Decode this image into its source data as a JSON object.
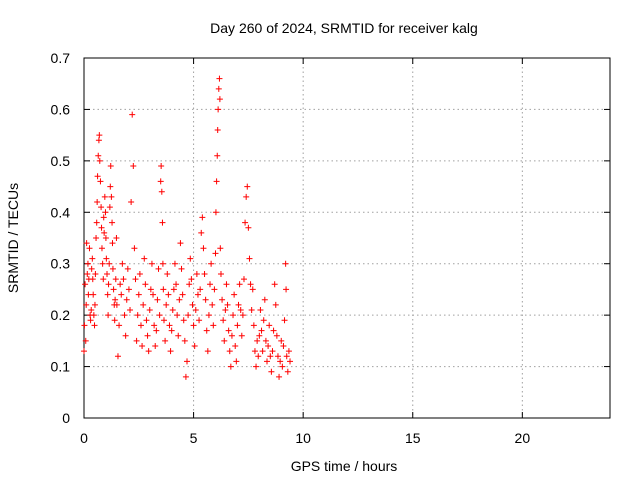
{
  "chart_data": {
    "type": "scatter",
    "title": "Day 260 of 2024, SRMTID for receiver kalg",
    "xlabel": "GPS time / hours",
    "ylabel": "SRMTID / TECUs",
    "xlim": [
      0,
      24
    ],
    "ylim": [
      0,
      0.7
    ],
    "xticks": [
      0,
      5,
      10,
      15,
      20
    ],
    "yticks": [
      0,
      0.1,
      0.2,
      0.3,
      0.4,
      0.5,
      0.6,
      0.7
    ],
    "marker": "+",
    "color": "#ff0000",
    "grid": true,
    "series": [
      {
        "name": "SRMTID",
        "points": [
          [
            0.0,
            0.13
          ],
          [
            0.02,
            0.18
          ],
          [
            0.05,
            0.26
          ],
          [
            0.08,
            0.15
          ],
          [
            0.1,
            0.22
          ],
          [
            0.12,
            0.34
          ],
          [
            0.15,
            0.28
          ],
          [
            0.18,
            0.3
          ],
          [
            0.2,
            0.24
          ],
          [
            0.22,
            0.27
          ],
          [
            0.25,
            0.33
          ],
          [
            0.28,
            0.2
          ],
          [
            0.3,
            0.19
          ],
          [
            0.33,
            0.21
          ],
          [
            0.35,
            0.29
          ],
          [
            0.38,
            0.31
          ],
          [
            0.4,
            0.27
          ],
          [
            0.42,
            0.24
          ],
          [
            0.45,
            0.2
          ],
          [
            0.48,
            0.18
          ],
          [
            0.5,
            0.22
          ],
          [
            0.52,
            0.28
          ],
          [
            0.55,
            0.35
          ],
          [
            0.58,
            0.38
          ],
          [
            0.6,
            0.42
          ],
          [
            0.62,
            0.47
          ],
          [
            0.65,
            0.51
          ],
          [
            0.68,
            0.54
          ],
          [
            0.7,
            0.55
          ],
          [
            0.72,
            0.5
          ],
          [
            0.75,
            0.46
          ],
          [
            0.78,
            0.41
          ],
          [
            0.8,
            0.37
          ],
          [
            0.82,
            0.33
          ],
          [
            0.85,
            0.3
          ],
          [
            0.88,
            0.27
          ],
          [
            0.9,
            0.39
          ],
          [
            0.92,
            0.36
          ],
          [
            0.95,
            0.43
          ],
          [
            0.98,
            0.4
          ],
          [
            1.0,
            0.35
          ],
          [
            1.02,
            0.31
          ],
          [
            1.05,
            0.28
          ],
          [
            1.08,
            0.24
          ],
          [
            1.1,
            0.2
          ],
          [
            1.12,
            0.26
          ],
          [
            1.15,
            0.3
          ],
          [
            1.18,
            0.41
          ],
          [
            1.2,
            0.45
          ],
          [
            1.22,
            0.49
          ],
          [
            1.25,
            0.43
          ],
          [
            1.28,
            0.38
          ],
          [
            1.3,
            0.34
          ],
          [
            1.32,
            0.29
          ],
          [
            1.35,
            0.25
          ],
          [
            1.38,
            0.22
          ],
          [
            1.4,
            0.19
          ],
          [
            1.42,
            0.23
          ],
          [
            1.45,
            0.27
          ],
          [
            1.48,
            0.35
          ],
          [
            1.5,
            0.22
          ],
          [
            1.55,
            0.12
          ],
          [
            1.6,
            0.18
          ],
          [
            1.65,
            0.26
          ],
          [
            1.7,
            0.24
          ],
          [
            1.75,
            0.3
          ],
          [
            1.8,
            0.27
          ],
          [
            1.85,
            0.2
          ],
          [
            1.9,
            0.16
          ],
          [
            1.95,
            0.23
          ],
          [
            2.0,
            0.29
          ],
          [
            2.05,
            0.25
          ],
          [
            2.1,
            0.21
          ],
          [
            2.15,
            0.42
          ],
          [
            2.2,
            0.59
          ],
          [
            2.25,
            0.49
          ],
          [
            2.3,
            0.33
          ],
          [
            2.35,
            0.27
          ],
          [
            2.4,
            0.15
          ],
          [
            2.45,
            0.2
          ],
          [
            2.5,
            0.24
          ],
          [
            2.55,
            0.28
          ],
          [
            2.6,
            0.18
          ],
          [
            2.65,
            0.14
          ],
          [
            2.7,
            0.22
          ],
          [
            2.75,
            0.31
          ],
          [
            2.8,
            0.26
          ],
          [
            2.85,
            0.19
          ],
          [
            2.9,
            0.16
          ],
          [
            2.95,
            0.13
          ],
          [
            3.0,
            0.21
          ],
          [
            3.05,
            0.25
          ],
          [
            3.1,
            0.3
          ],
          [
            3.15,
            0.24
          ],
          [
            3.2,
            0.18
          ],
          [
            3.25,
            0.14
          ],
          [
            3.3,
            0.17
          ],
          [
            3.35,
            0.23
          ],
          [
            3.4,
            0.29
          ],
          [
            3.45,
            0.2
          ],
          [
            3.5,
            0.46
          ],
          [
            3.52,
            0.49
          ],
          [
            3.55,
            0.44
          ],
          [
            3.58,
            0.38
          ],
          [
            3.6,
            0.3
          ],
          [
            3.62,
            0.25
          ],
          [
            3.65,
            0.19
          ],
          [
            3.7,
            0.15
          ],
          [
            3.75,
            0.22
          ],
          [
            3.8,
            0.28
          ],
          [
            3.85,
            0.24
          ],
          [
            3.9,
            0.18
          ],
          [
            3.95,
            0.13
          ],
          [
            4.0,
            0.17
          ],
          [
            4.05,
            0.21
          ],
          [
            4.1,
            0.25
          ],
          [
            4.15,
            0.3
          ],
          [
            4.2,
            0.26
          ],
          [
            4.25,
            0.2
          ],
          [
            4.3,
            0.16
          ],
          [
            4.35,
            0.23
          ],
          [
            4.4,
            0.34
          ],
          [
            4.45,
            0.29
          ],
          [
            4.5,
            0.24
          ],
          [
            4.55,
            0.19
          ],
          [
            4.6,
            0.15
          ],
          [
            4.65,
            0.08
          ],
          [
            4.7,
            0.11
          ],
          [
            4.75,
            0.2
          ],
          [
            4.8,
            0.26
          ],
          [
            4.85,
            0.31
          ],
          [
            4.9,
            0.27
          ],
          [
            4.95,
            0.22
          ],
          [
            5.0,
            0.18
          ],
          [
            5.05,
            0.14
          ],
          [
            5.1,
            0.21
          ],
          [
            5.15,
            0.28
          ],
          [
            5.2,
            0.24
          ],
          [
            5.25,
            0.19
          ],
          [
            5.3,
            0.25
          ],
          [
            5.35,
            0.36
          ],
          [
            5.4,
            0.39
          ],
          [
            5.45,
            0.33
          ],
          [
            5.5,
            0.28
          ],
          [
            5.55,
            0.23
          ],
          [
            5.6,
            0.17
          ],
          [
            5.65,
            0.13
          ],
          [
            5.7,
            0.2
          ],
          [
            5.75,
            0.26
          ],
          [
            5.8,
            0.3
          ],
          [
            5.85,
            0.22
          ],
          [
            5.9,
            0.18
          ],
          [
            5.95,
            0.25
          ],
          [
            6.0,
            0.32
          ],
          [
            6.02,
            0.4
          ],
          [
            6.05,
            0.46
          ],
          [
            6.08,
            0.51
          ],
          [
            6.1,
            0.56
          ],
          [
            6.12,
            0.6
          ],
          [
            6.15,
            0.64
          ],
          [
            6.18,
            0.66
          ],
          [
            6.2,
            0.62
          ],
          [
            6.22,
            0.33
          ],
          [
            6.25,
            0.28
          ],
          [
            6.3,
            0.23
          ],
          [
            6.35,
            0.19
          ],
          [
            6.4,
            0.15
          ],
          [
            6.45,
            0.21
          ],
          [
            6.5,
            0.26
          ],
          [
            6.55,
            0.22
          ],
          [
            6.6,
            0.17
          ],
          [
            6.65,
            0.13
          ],
          [
            6.7,
            0.1
          ],
          [
            6.75,
            0.16
          ],
          [
            6.8,
            0.2
          ],
          [
            6.85,
            0.24
          ],
          [
            6.9,
            0.14
          ],
          [
            6.95,
            0.11
          ],
          [
            7.0,
            0.18
          ],
          [
            7.05,
            0.22
          ],
          [
            7.1,
            0.26
          ],
          [
            7.15,
            0.21
          ],
          [
            7.2,
            0.16
          ],
          [
            7.25,
            0.2
          ],
          [
            7.3,
            0.27
          ],
          [
            7.35,
            0.38
          ],
          [
            7.4,
            0.43
          ],
          [
            7.45,
            0.45
          ],
          [
            7.5,
            0.37
          ],
          [
            7.55,
            0.31
          ],
          [
            7.6,
            0.26
          ],
          [
            7.65,
            0.21
          ],
          [
            7.7,
            0.25
          ],
          [
            7.75,
            0.18
          ],
          [
            7.8,
            0.13
          ],
          [
            7.85,
            0.1
          ],
          [
            7.9,
            0.15
          ],
          [
            7.95,
            0.12
          ],
          [
            8.0,
            0.16
          ],
          [
            8.05,
            0.21
          ],
          [
            8.1,
            0.17
          ],
          [
            8.15,
            0.13
          ],
          [
            8.2,
            0.19
          ],
          [
            8.25,
            0.23
          ],
          [
            8.3,
            0.15
          ],
          [
            8.35,
            0.11
          ],
          [
            8.4,
            0.14
          ],
          [
            8.45,
            0.18
          ],
          [
            8.5,
            0.12
          ],
          [
            8.55,
            0.09
          ],
          [
            8.6,
            0.13
          ],
          [
            8.65,
            0.17
          ],
          [
            8.7,
            0.26
          ],
          [
            8.75,
            0.22
          ],
          [
            8.8,
            0.16
          ],
          [
            8.85,
            0.12
          ],
          [
            8.9,
            0.08
          ],
          [
            8.95,
            0.11
          ],
          [
            9.0,
            0.15
          ],
          [
            9.05,
            0.1
          ],
          [
            9.1,
            0.14
          ],
          [
            9.15,
            0.19
          ],
          [
            9.2,
            0.3
          ],
          [
            9.22,
            0.25
          ],
          [
            9.25,
            0.12
          ],
          [
            9.3,
            0.09
          ],
          [
            9.35,
            0.13
          ],
          [
            9.4,
            0.11
          ]
        ]
      }
    ]
  }
}
